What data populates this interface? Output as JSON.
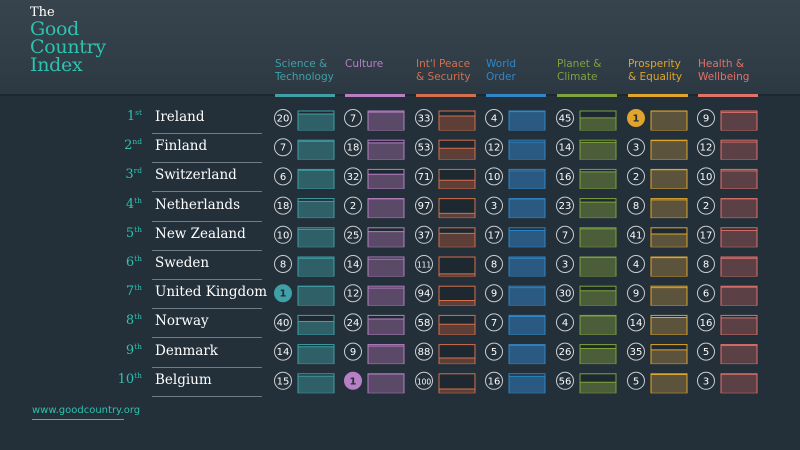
{
  "logo": {
    "the": "The",
    "line1": "Good",
    "line2": "Country",
    "line3": "Index"
  },
  "website": "www.goodcountry.org",
  "chart_data": {
    "type": "table",
    "categories": [
      {
        "line1": "Science &",
        "line2": "Technology",
        "color": "#3fa0a8",
        "fill": "#2f5f67"
      },
      {
        "line1": "Culture",
        "line2": "",
        "color": "#b77fc4",
        "fill": "#5b4a67"
      },
      {
        "line1": "Int'l Peace",
        "line2": "& Security",
        "color": "#d46f4d",
        "fill": "#5d3f38"
      },
      {
        "line1": "World",
        "line2": "Order",
        "color": "#2f87c8",
        "fill": "#2a5a82"
      },
      {
        "line1": "Planet &",
        "line2": "Climate",
        "color": "#7ea33c",
        "fill": "#4c5d3a"
      },
      {
        "line1": "Prosperity",
        "line2": "& Equality",
        "color": "#e0a52a",
        "fill": "#5c533c"
      },
      {
        "line1": "Health &",
        "line2": "Wellbeing",
        "color": "#e0726a",
        "fill": "#5b4146"
      }
    ],
    "rows": [
      {
        "rank": "1",
        "suffix": "st",
        "country": "Ireland",
        "values": [
          20,
          7,
          33,
          4,
          45,
          1,
          9
        ]
      },
      {
        "rank": "2",
        "suffix": "nd",
        "country": "Finland",
        "values": [
          7,
          18,
          53,
          12,
          14,
          3,
          12
        ]
      },
      {
        "rank": "3",
        "suffix": "rd",
        "country": "Switzerland",
        "values": [
          6,
          32,
          71,
          10,
          16,
          2,
          10
        ]
      },
      {
        "rank": "4",
        "suffix": "th",
        "country": "Netherlands",
        "values": [
          18,
          2,
          97,
          3,
          23,
          8,
          2
        ]
      },
      {
        "rank": "5",
        "suffix": "th",
        "country": "New Zealand",
        "values": [
          10,
          25,
          37,
          17,
          7,
          41,
          17
        ]
      },
      {
        "rank": "6",
        "suffix": "th",
        "country": "Sweden",
        "values": [
          8,
          14,
          111,
          8,
          3,
          4,
          8
        ]
      },
      {
        "rank": "7",
        "suffix": "th",
        "country": "United Kingdom",
        "values": [
          1,
          12,
          94,
          9,
          30,
          9,
          6
        ]
      },
      {
        "rank": "8",
        "suffix": "th",
        "country": "Norway",
        "values": [
          40,
          24,
          58,
          7,
          4,
          14,
          16
        ]
      },
      {
        "rank": "9",
        "suffix": "th",
        "country": "Denmark",
        "values": [
          14,
          9,
          88,
          5,
          26,
          35,
          5
        ]
      },
      {
        "rank": "10",
        "suffix": "th",
        "country": "Belgium",
        "values": [
          15,
          1,
          100,
          16,
          56,
          5,
          3
        ]
      }
    ],
    "value_range": [
      1,
      125
    ]
  }
}
